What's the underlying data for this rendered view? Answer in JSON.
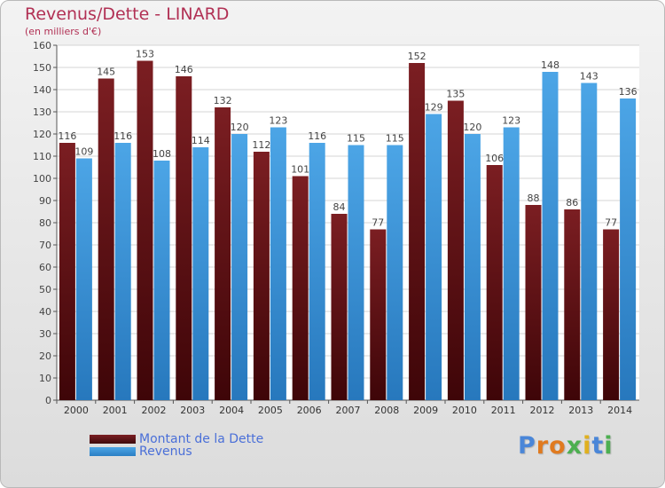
{
  "header": {
    "title": "Revenus/Dette - LINARD",
    "subtitle": "(en milliers d'€)"
  },
  "colors": {
    "dette": "#7b1e22",
    "revenus": "#4ca5e6",
    "title": "#b13054",
    "legend_text": "#4a6fd8"
  },
  "chart_data": {
    "type": "bar",
    "title": "Revenus/Dette - LINARD",
    "subtitle": "(en milliers d'€)",
    "categories": [
      "2000",
      "2001",
      "2002",
      "2003",
      "2004",
      "2005",
      "2006",
      "2007",
      "2008",
      "2009",
      "2010",
      "2011",
      "2012",
      "2013",
      "2014"
    ],
    "series": [
      {
        "name": "Montant de la Dette",
        "values": [
          116,
          145,
          153,
          146,
          132,
          112,
          101,
          84,
          77,
          152,
          135,
          106,
          88,
          86,
          77
        ]
      },
      {
        "name": "Revenus",
        "values": [
          109,
          116,
          108,
          114,
          120,
          123,
          116,
          115,
          115,
          129,
          120,
          123,
          148,
          143,
          136
        ]
      }
    ],
    "ylim": [
      0,
      160
    ],
    "yticks": [
      0,
      10,
      20,
      30,
      40,
      50,
      60,
      70,
      80,
      90,
      100,
      110,
      120,
      130,
      140,
      150,
      160
    ],
    "grid": true,
    "legend_position": "bottom-left"
  },
  "legend": {
    "dette_label": "Montant de la Dette",
    "revenus_label": "Revenus"
  },
  "logo": {
    "text": "Proxiti",
    "letters": [
      "P",
      "r",
      "o",
      "x",
      "i",
      "t",
      "i"
    ],
    "letter_colors": [
      "#4a86d8",
      "#e07a1f",
      "#e07a1f",
      "#4caf50",
      "#e0b01f",
      "#4a86d8",
      "#4caf50"
    ]
  }
}
